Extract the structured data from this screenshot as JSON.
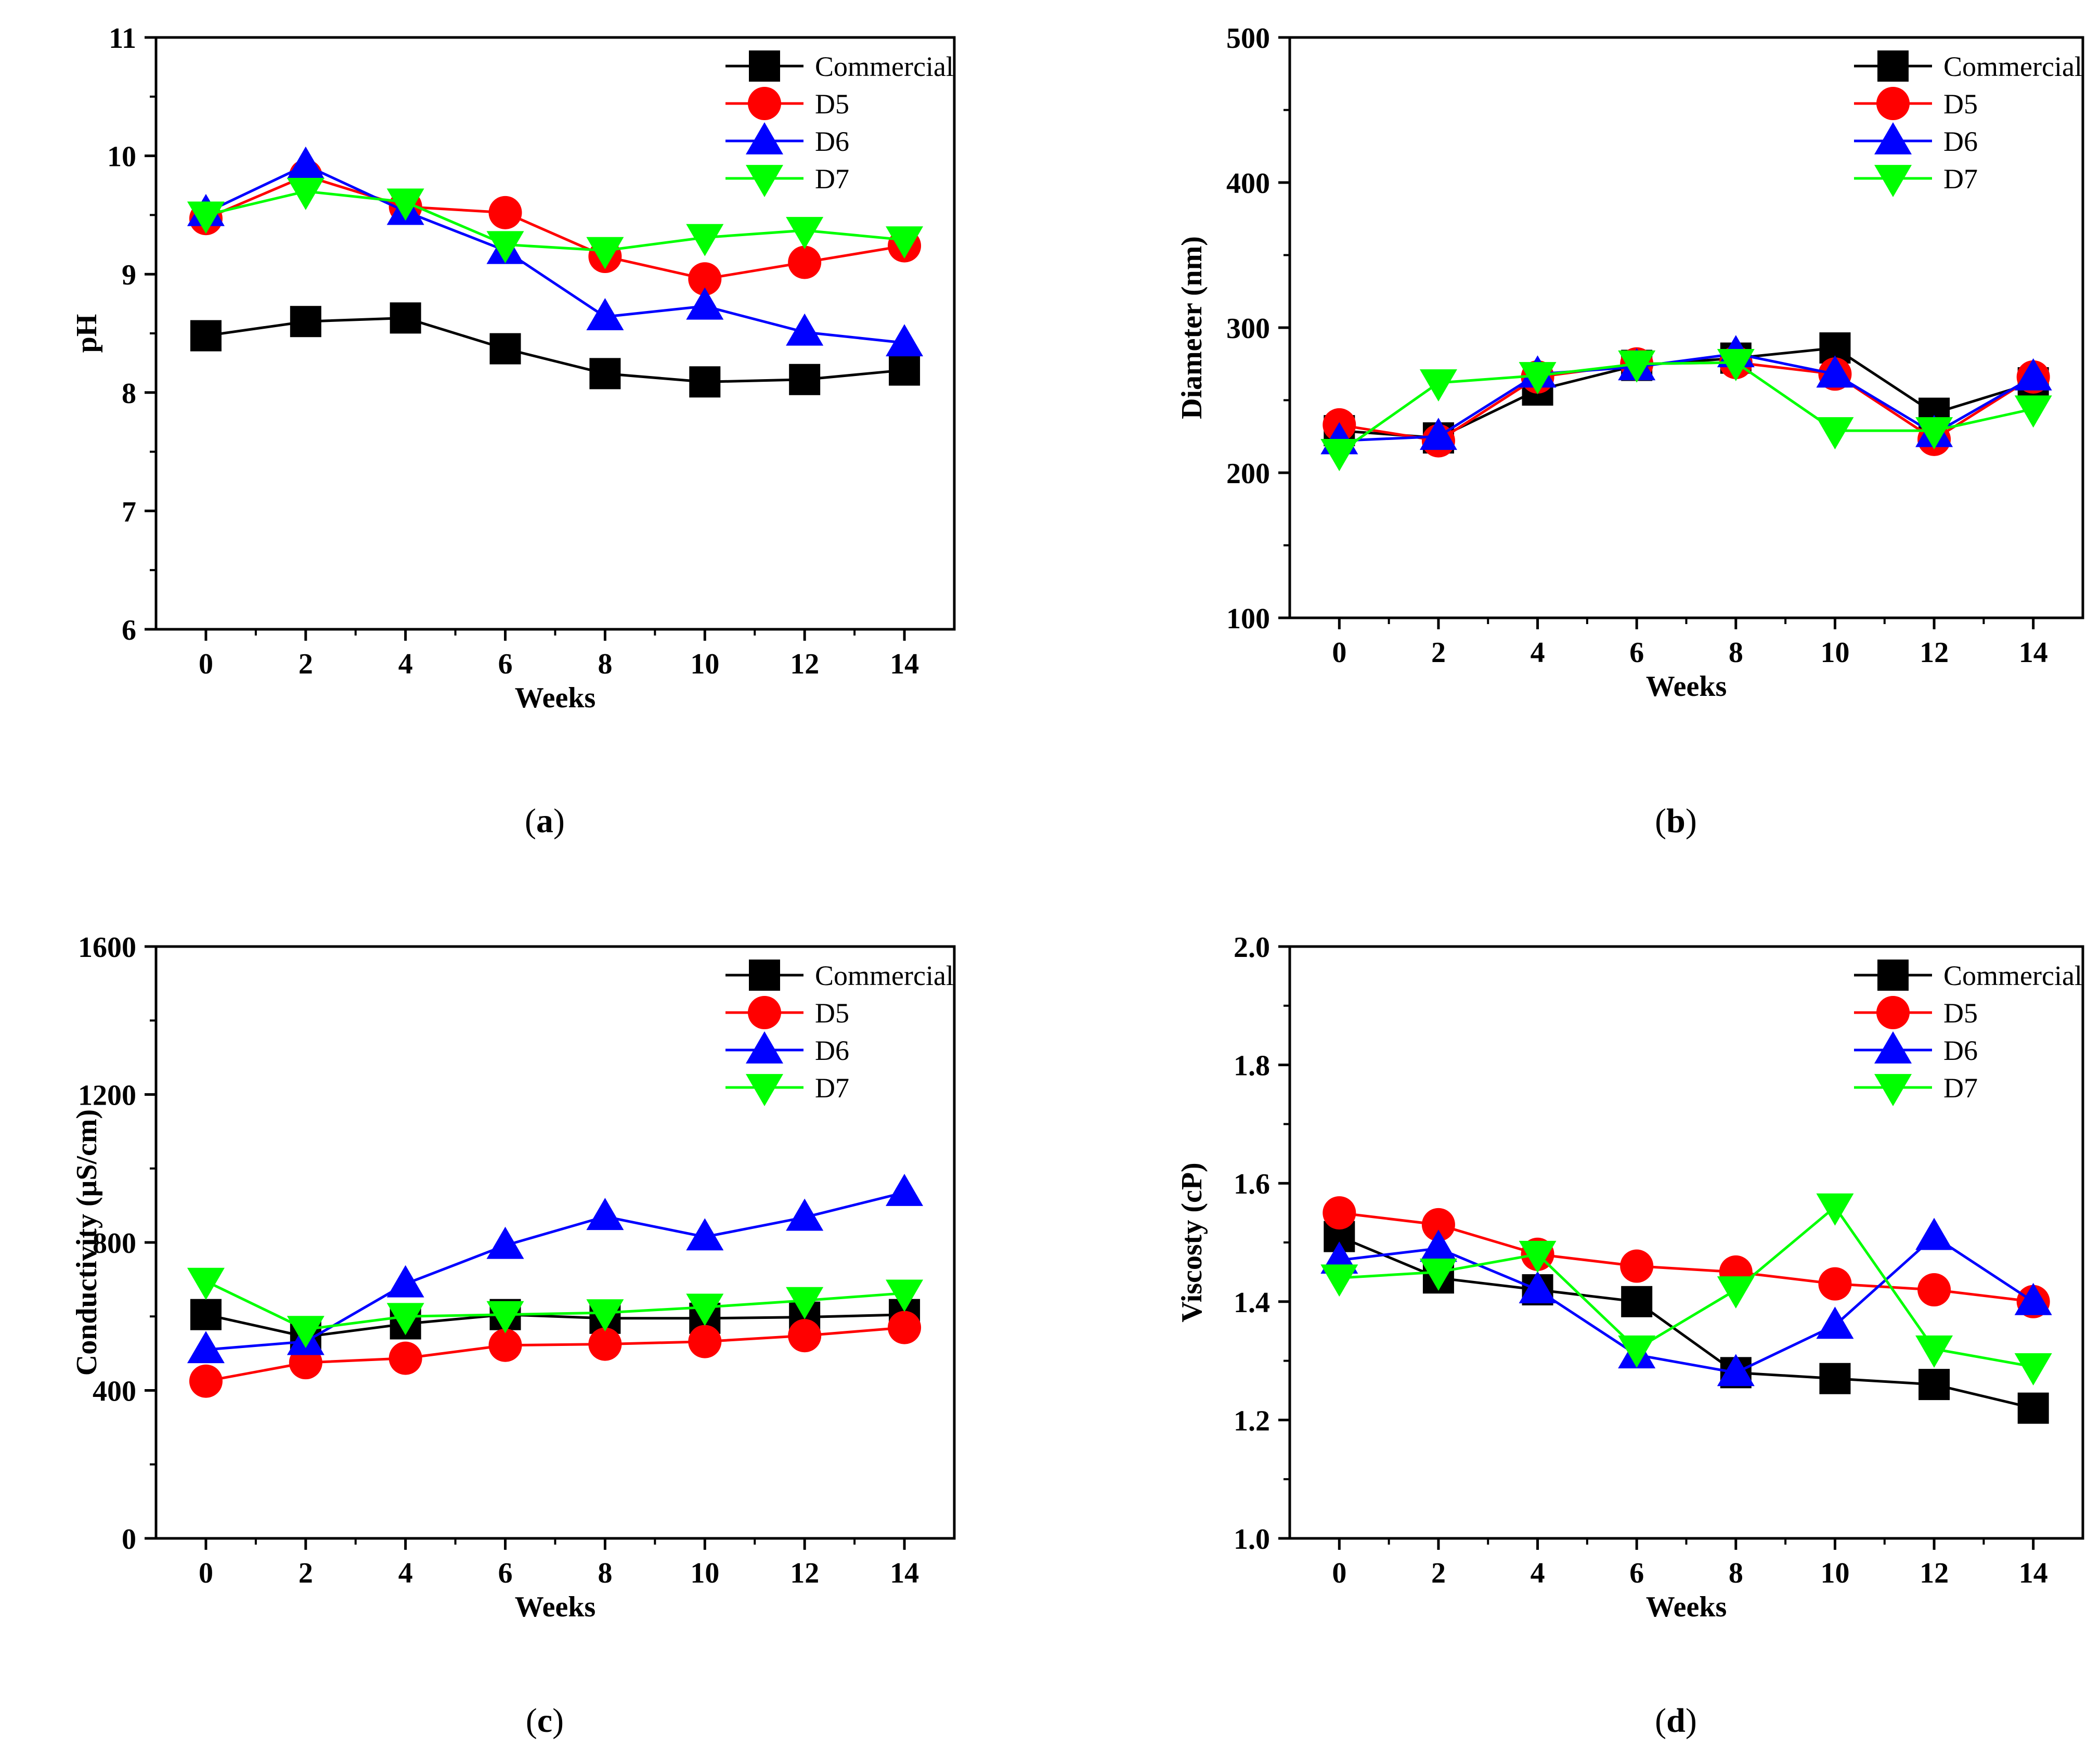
{
  "chart_data": [
    {
      "panel": "(a)",
      "type": "line",
      "xlabel": "Weeks",
      "ylabel": "pH",
      "x": [
        0,
        2,
        4,
        6,
        8,
        10,
        12,
        14
      ],
      "xlim": [
        -1,
        15
      ],
      "ylim": [
        6,
        11
      ],
      "xticks": [
        0,
        2,
        4,
        6,
        8,
        10,
        12,
        14
      ],
      "yticks": [
        6,
        7,
        8,
        9,
        10,
        11
      ],
      "ytick_decimals": 0,
      "grid": false,
      "legend_position": "top-right",
      "series": [
        {
          "name": "Commercial",
          "color": "#000000",
          "marker": "square",
          "values": [
            8.48,
            8.6,
            8.63,
            8.37,
            8.16,
            8.09,
            8.11,
            8.19
          ]
        },
        {
          "name": "D5",
          "color": "#ff0000",
          "marker": "circle",
          "values": [
            9.47,
            9.83,
            9.57,
            9.52,
            9.15,
            8.96,
            9.1,
            9.24
          ]
        },
        {
          "name": "D6",
          "color": "#0000ff",
          "marker": "triangle-up",
          "values": [
            9.52,
            9.92,
            9.53,
            9.2,
            8.64,
            8.73,
            8.51,
            8.42
          ]
        },
        {
          "name": "D7",
          "color": "#00ff00",
          "marker": "triangle-down",
          "values": [
            9.5,
            9.7,
            9.61,
            9.25,
            9.2,
            9.31,
            9.37,
            9.29
          ]
        }
      ]
    },
    {
      "panel": "(b)",
      "type": "line",
      "xlabel": "Weeks",
      "ylabel": "Diameter (nm)",
      "x": [
        0,
        2,
        4,
        6,
        8,
        10,
        12,
        14
      ],
      "xlim": [
        -1,
        15
      ],
      "ylim": [
        100,
        500
      ],
      "xticks": [
        0,
        2,
        4,
        6,
        8,
        10,
        12,
        14
      ],
      "yticks": [
        100,
        200,
        300,
        400,
        500
      ],
      "ytick_decimals": 0,
      "grid": false,
      "legend_position": "top-right",
      "series": [
        {
          "name": "Commercial",
          "color": "#000000",
          "marker": "square",
          "values": [
            229,
            224,
            257,
            274,
            279,
            286,
            241,
            262
          ]
        },
        {
          "name": "D5",
          "color": "#ff0000",
          "marker": "circle",
          "values": [
            233,
            222,
            266,
            275,
            276,
            268,
            223,
            266
          ]
        },
        {
          "name": "D6",
          "color": "#0000ff",
          "marker": "triangle-up",
          "values": [
            222,
            225,
            268,
            273,
            282,
            268,
            227,
            266
          ]
        },
        {
          "name": "D7",
          "color": "#00ff00",
          "marker": "triangle-down",
          "values": [
            214,
            262,
            267,
            275,
            276,
            229,
            229,
            244
          ]
        }
      ]
    },
    {
      "panel": "(c)",
      "type": "line",
      "xlabel": "Weeks",
      "ylabel": "Conductivity (μS/cm)",
      "x": [
        0,
        2,
        4,
        6,
        8,
        10,
        12,
        14
      ],
      "xlim": [
        -1,
        15
      ],
      "ylim": [
        0,
        1600
      ],
      "xticks": [
        0,
        2,
        4,
        6,
        8,
        10,
        12,
        14
      ],
      "yticks": [
        0,
        400,
        800,
        1200,
        1600
      ],
      "ytick_decimals": 0,
      "grid": false,
      "legend_position": "top-right",
      "series": [
        {
          "name": "Commercial",
          "color": "#000000",
          "marker": "square",
          "values": [
            605,
            545,
            580,
            605,
            595,
            595,
            598,
            605
          ]
        },
        {
          "name": "D5",
          "color": "#ff0000",
          "marker": "circle",
          "values": [
            425,
            475,
            487,
            522,
            525,
            532,
            548,
            570
          ]
        },
        {
          "name": "D6",
          "color": "#0000ff",
          "marker": "triangle-up",
          "values": [
            510,
            532,
            688,
            792,
            870,
            815,
            868,
            935
          ]
        },
        {
          "name": "D7",
          "color": "#00ff00",
          "marker": "triangle-down",
          "values": [
            695,
            565,
            600,
            605,
            610,
            625,
            643,
            663
          ]
        }
      ]
    },
    {
      "panel": "(d)",
      "type": "line",
      "xlabel": "Weeks",
      "ylabel": "Viscosty (cP)",
      "x": [
        0,
        2,
        4,
        6,
        8,
        10,
        12,
        14
      ],
      "xlim": [
        -1,
        15
      ],
      "ylim": [
        1.0,
        2.0
      ],
      "xticks": [
        0,
        2,
        4,
        6,
        8,
        10,
        12,
        14
      ],
      "yticks": [
        1.0,
        1.2,
        1.4,
        1.6,
        1.8,
        2.0
      ],
      "ytick_decimals": 1,
      "grid": false,
      "legend_position": "top-right",
      "series": [
        {
          "name": "Commercial",
          "color": "#000000",
          "marker": "square",
          "values": [
            1.51,
            1.44,
            1.42,
            1.4,
            1.28,
            1.27,
            1.26,
            1.22
          ]
        },
        {
          "name": "D5",
          "color": "#ff0000",
          "marker": "circle",
          "values": [
            1.55,
            1.53,
            1.48,
            1.46,
            1.45,
            1.43,
            1.42,
            1.4
          ]
        },
        {
          "name": "D6",
          "color": "#0000ff",
          "marker": "triangle-up",
          "values": [
            1.47,
            1.49,
            1.42,
            1.31,
            1.28,
            1.36,
            1.51,
            1.4
          ]
        },
        {
          "name": "D7",
          "color": "#00ff00",
          "marker": "triangle-down",
          "values": [
            1.44,
            1.45,
            1.48,
            1.32,
            1.42,
            1.56,
            1.32,
            1.29
          ]
        }
      ]
    }
  ]
}
